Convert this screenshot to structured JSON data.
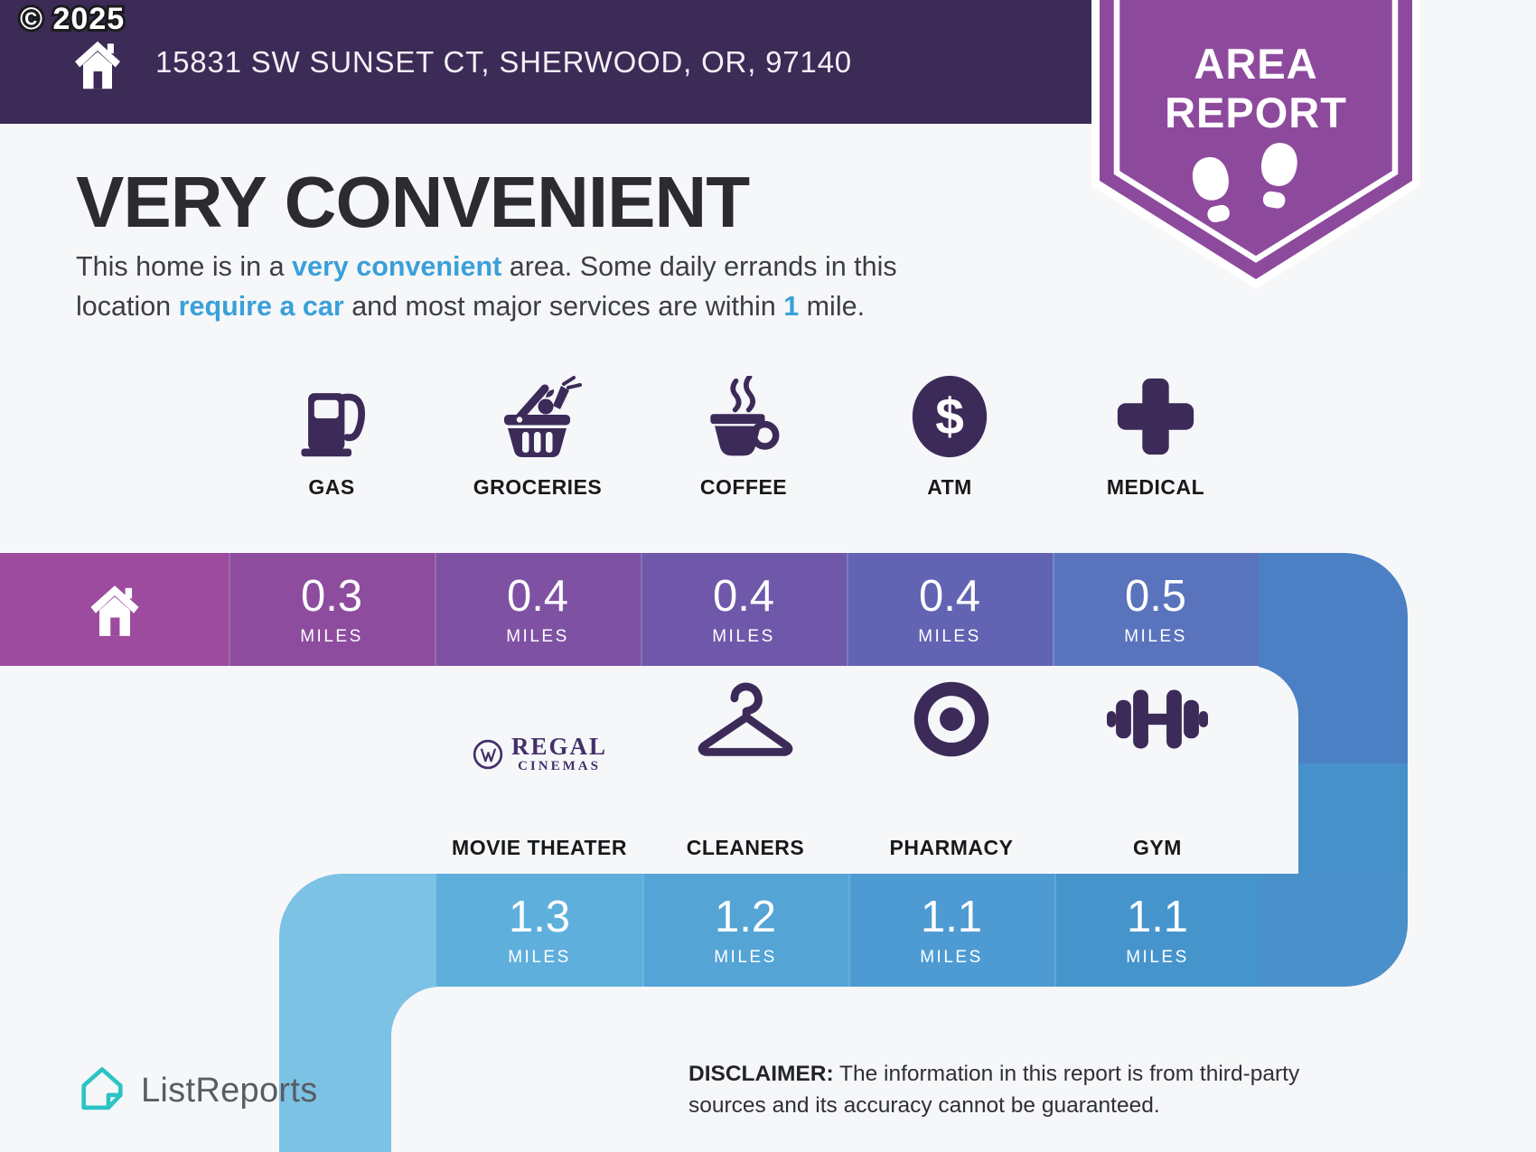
{
  "header": {
    "copyright": "© 2025",
    "address": "15831 SW SUNSET CT, SHERWOOD, OR, 97140",
    "home_icon": "home-icon",
    "badge": {
      "line1": "AREA",
      "line2": "REPORT",
      "footprints_icon": "footprints-icon",
      "color": "#8d4a9d"
    }
  },
  "headline": {
    "title": "VERY CONVENIENT",
    "description_segments": [
      {
        "text": "This home is in a "
      },
      {
        "text": "very convenient",
        "bold": true
      },
      {
        "text": " area. Some daily errands in this"
      },
      {
        "br": true
      },
      {
        "text": "location "
      },
      {
        "text": "require a car",
        "bold": true
      },
      {
        "text": " and most major services are within "
      },
      {
        "text": "1",
        "bold": true
      },
      {
        "text": " mile."
      }
    ]
  },
  "row1": [
    {
      "label": "GAS",
      "icon": "gas-pump-icon"
    },
    {
      "label": "GROCERIES",
      "icon": "grocery-basket-icon"
    },
    {
      "label": "COFFEE",
      "icon": "coffee-cup-icon"
    },
    {
      "label": "ATM",
      "icon": "dollar-circle-icon"
    },
    {
      "label": "MEDICAL",
      "icon": "medical-cross-icon"
    }
  ],
  "band1": {
    "home_icon": "home-icon",
    "home_color": "#9c4b9f",
    "cells": [
      {
        "value": "0.3",
        "unit": "MILES",
        "color": "#8e4c9e"
      },
      {
        "value": "0.4",
        "unit": "MILES",
        "color": "#7e51a3"
      },
      {
        "value": "0.4",
        "unit": "MILES",
        "color": "#6f58aa"
      },
      {
        "value": "0.4",
        "unit": "MILES",
        "color": "#6263b2"
      },
      {
        "value": "0.5",
        "unit": "MILES",
        "color": "#5a73bd"
      }
    ],
    "turn_color": "#4c80c4"
  },
  "row2": [
    {
      "label": "MOVIE THEATER",
      "icon": "regal-cinemas-logo",
      "brand_name": "REGAL",
      "brand_sub": "CINEMAS"
    },
    {
      "label": "CLEANERS",
      "icon": "hanger-icon"
    },
    {
      "label": "PHARMACY",
      "icon": "target-icon"
    },
    {
      "label": "GYM",
      "icon": "dumbbell-icon"
    }
  ],
  "band2": {
    "cells": [
      {
        "value": "1.3",
        "unit": "MILES",
        "color": "#5fafdd"
      },
      {
        "value": "1.2",
        "unit": "MILES",
        "color": "#54a4d6"
      },
      {
        "value": "1.1",
        "unit": "MILES",
        "color": "#4d9bd2"
      },
      {
        "value": "1.1",
        "unit": "MILES",
        "color": "#4694cc"
      }
    ],
    "left_turn_color": "#7cc2e5",
    "right_turn_color": "#4a90ca",
    "strip_lower_color": "#4791ca"
  },
  "footer": {
    "logo_icon": "listreports-logo-icon",
    "logo_text": "ListReports",
    "logo_color": "#2bc4c3",
    "disclaimer_label": "DISCLAIMER:",
    "disclaimer_text": " The information in this report is from third-party sources and its accuracy cannot be guaranteed."
  },
  "colors": {
    "background": "#f6f7f9",
    "header_bg": "#3b2b56",
    "icon_ink": "#3c2b59",
    "accent_blue": "#3aa0da",
    "title": "#2c2c30",
    "body_text": "#3c3e42"
  }
}
